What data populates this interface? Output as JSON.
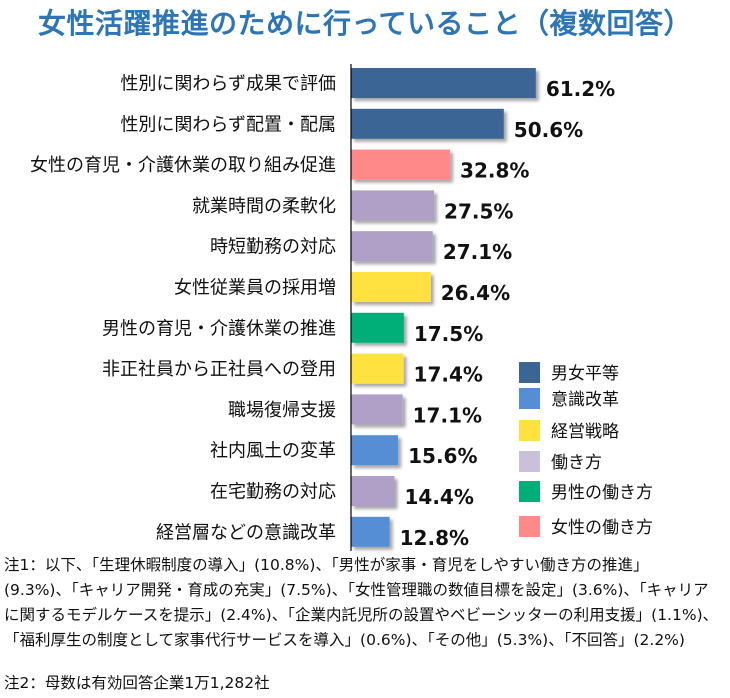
{
  "chart_data": {
    "type": "bar",
    "orientation": "horizontal",
    "title": "女性活躍推進のために行っていること（複数回答）",
    "xlim": [
      0,
      100
    ],
    "grid": false,
    "legend_position": "bottom-right",
    "categories": [
      "性別に関わらず成果で評価",
      "性別に関わらず配置・配属",
      "女性の育児・介護休業の取り組み促進",
      "就業時間の柔軟化",
      "時短勤務の対応",
      "女性従業員の採用増",
      "男性の育児・介護休業の推進",
      "非正社員から正社員への登用",
      "職場復帰支援",
      "社内風土の変革",
      "在宅勤務の対応",
      "経営層などの意識改革"
    ],
    "values": [
      61.2,
      50.6,
      32.8,
      27.5,
      27.1,
      26.4,
      17.5,
      17.4,
      17.1,
      15.6,
      14.4,
      12.8
    ],
    "value_labels": [
      "61.2%",
      "50.6%",
      "32.8%",
      "27.5%",
      "27.1%",
      "26.4%",
      "17.5%",
      "17.4%",
      "17.1%",
      "15.6%",
      "14.4%",
      "12.8%"
    ],
    "groups": [
      "男女平等",
      "男女平等",
      "女性の働き方",
      "働き方",
      "働き方",
      "経営戦略",
      "男性の働き方",
      "経営戦略",
      "働き方",
      "意識改革",
      "働き方",
      "意識改革"
    ],
    "legend": [
      {
        "name": "男女平等",
        "color": "#3a6595",
        "swatch": "#3a6595"
      },
      {
        "name": "意識改革",
        "color": "#558ed5",
        "swatch": "#558ed5"
      },
      {
        "name": "経営戦略",
        "color": "#ffe13f",
        "swatch": "#ffe13f"
      },
      {
        "name": "働き方",
        "color": "#b0a0c8",
        "swatch": "#cbc0da"
      },
      {
        "name": "男性の働き方",
        "color": "#00ae78",
        "swatch": "#00ae78"
      },
      {
        "name": "女性の働き方",
        "color": "#ff8888",
        "swatch": "#ff8888"
      }
    ]
  },
  "notes": {
    "note1_lines": [
      "注1：以下、「生理休暇制度の導入」(10.8%)、「男性が家事・育児をしやすい働き方の推進」",
      "(9.3%)、「キャリア開発・育成の充実」(7.5%)、「女性管理職の数値目標を設定」(3.6%)、「キャリア",
      "に関するモデルケースを提示」(2.4%)、「企業内託児所の設置やベビーシッターの利用支援」(1.1%)、",
      "「福利厚生の制度として家事代行サービスを導入」(0.6%)、「その他」(5.3%)、「不回答」(2.2%)"
    ],
    "note2": "注2：母数は有効回答企業1万1,282社"
  }
}
